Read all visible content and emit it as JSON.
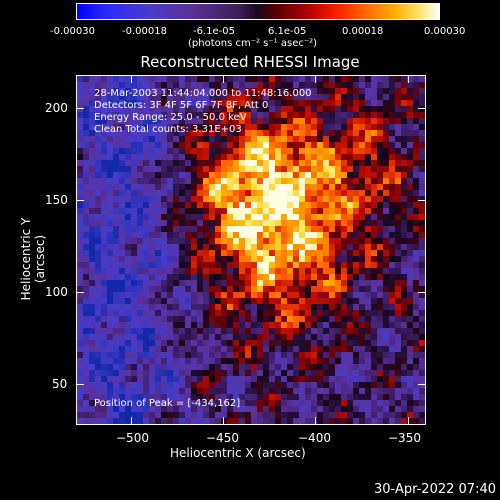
{
  "colorbar": {
    "ticks": [
      "-0.00030",
      "-0.00018",
      "-6.1e-05",
      "6.1e-05",
      "0.00018",
      "0.00030"
    ],
    "units": "(photons cm⁻² s⁻¹ asec⁻²)"
  },
  "title": "Reconstructed RHESSI Image",
  "info": {
    "line1": "28-Mar-2003 11:44:04.000 to 11:48:16.000",
    "line2": "Detectors: 3F 4F 5F 6F 7F 8F, Att 0",
    "line3": "Energy Range: 25.0 - 50.0 keV",
    "line4": "Clean     Total counts: 3.31E+03",
    "peak": "Position of Peak = [-434,162]"
  },
  "footer": "30-Apr-2022 07:40",
  "chart_data": {
    "type": "heatmap",
    "title": "Reconstructed RHESSI Image",
    "xlabel": "Heliocentric X (arcsec)",
    "ylabel": "Heliocentric Y (arcsec)",
    "xlim": [
      -530,
      -340
    ],
    "ylim": [
      28,
      218
    ],
    "xticks": [
      -500,
      -450,
      -400,
      -350
    ],
    "yticks": [
      50,
      100,
      150,
      200
    ],
    "xtick_labels": [
      "−500",
      "−450",
      "−400",
      "−350"
    ],
    "ytick_labels": [
      "50",
      "100",
      "150",
      "200"
    ],
    "colorbar_range": [
      -0.0003,
      0.0003
    ],
    "peak_position": [
      -434,
      162
    ]
  }
}
